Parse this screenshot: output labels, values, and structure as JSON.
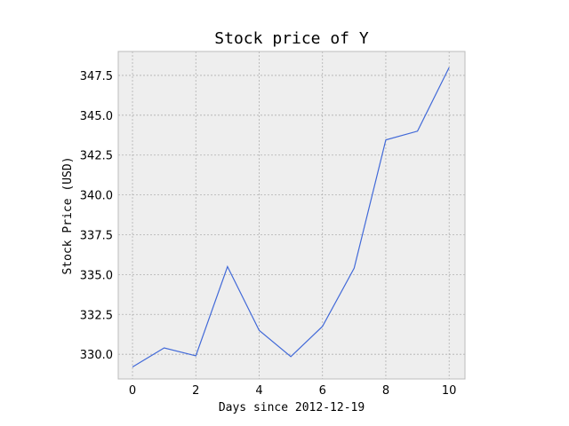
{
  "chart_data": {
    "type": "line",
    "title": "Stock price of Y",
    "xlabel": "Days since 2012-12-19",
    "ylabel": "Stock Price (USD)",
    "xlim": [
      -0.45,
      10.5
    ],
    "ylim": [
      328.45,
      349.0
    ],
    "x_ticks": [
      0,
      2,
      4,
      6,
      8,
      10
    ],
    "y_ticks": [
      330.0,
      332.5,
      335.0,
      337.5,
      340.0,
      342.5,
      345.0,
      347.5
    ],
    "grid": true,
    "legend": "none",
    "series": [
      {
        "color": "#4169d8",
        "x": [
          0,
          1,
          2,
          3,
          4,
          5,
          6,
          7,
          8,
          9,
          10
        ],
        "y": [
          329.2,
          330.4,
          329.9,
          335.5,
          331.5,
          329.85,
          331.75,
          335.4,
          343.45,
          344.0,
          348.0
        ]
      }
    ],
    "colors": {
      "plot_background": "#eeeeee",
      "grid": "#b0b0b0",
      "frame": "#bcbcbc"
    }
  }
}
